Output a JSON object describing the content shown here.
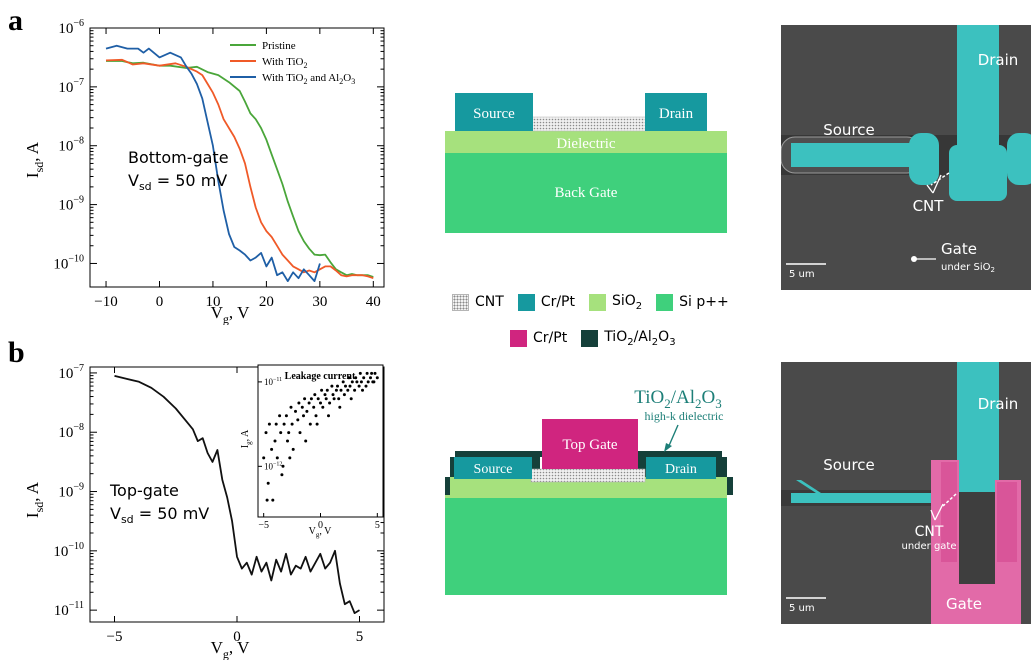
{
  "panel_a": {
    "letter": "a",
    "chart_data": {
      "type": "line",
      "xlabel_main": "V",
      "xlabel_sub": "g",
      "xlabel_tail": ", V",
      "ylabel_main": "I",
      "ylabel_sub": "sd",
      "ylabel_tail": ", A",
      "y_scale": "log",
      "xlim": [
        -13,
        42
      ],
      "ylim_exp": [
        -10.4,
        -6
      ],
      "x_ticks": [
        -10,
        0,
        10,
        20,
        30,
        40
      ],
      "x_tick_labels": [
        "−10",
        "0",
        "10",
        "20",
        "30",
        "40"
      ],
      "y_ticks": [
        -10,
        -9,
        -8,
        -7,
        -6
      ],
      "y_tick_base": "10",
      "y_tick_exps": [
        "−10",
        "−9",
        "−8",
        "−7",
        "−6"
      ],
      "annotation_line1": "Bottom-gate",
      "annotation_line2_main": "V",
      "annotation_line2_sub": "sd",
      "annotation_line2_tail": " = 50 mV",
      "legend_position": "top-right",
      "series": [
        {
          "name": "Pristine",
          "color": "#4aa63a",
          "x": [
            -10,
            -7,
            -5,
            -3,
            0,
            2,
            5,
            7,
            9,
            11,
            13,
            15,
            16,
            17,
            18,
            19,
            20,
            21,
            22,
            23,
            24,
            25,
            26,
            27,
            28,
            29,
            30,
            31,
            32,
            33,
            34,
            35,
            36,
            37,
            38,
            39,
            40
          ],
          "logy": [
            -6.56,
            -6.56,
            -6.6,
            -6.59,
            -6.64,
            -6.64,
            -6.68,
            -6.66,
            -6.75,
            -6.8,
            -6.92,
            -7.07,
            -7.25,
            -7.45,
            -7.55,
            -7.7,
            -7.9,
            -8.15,
            -8.4,
            -8.65,
            -8.95,
            -9.2,
            -9.45,
            -9.62,
            -9.75,
            -9.85,
            -9.86,
            -9.85,
            -9.98,
            -10.1,
            -10.15,
            -10.2,
            -10.18,
            -10.2,
            -10.2,
            -10.2,
            -10.23
          ]
        },
        {
          "name": "With TiO",
          "name_sub": "2",
          "color": "#f05a28",
          "x": [
            -10,
            -7,
            -5,
            -3,
            0,
            3,
            5,
            7,
            8,
            9,
            10,
            11,
            12,
            13,
            14,
            15,
            16,
            17,
            18,
            19,
            20,
            21,
            22,
            23,
            24,
            25,
            26,
            27,
            28,
            29,
            30,
            31,
            32,
            33,
            34,
            35,
            36,
            37,
            38,
            39,
            40
          ],
          "logy": [
            -6.55,
            -6.54,
            -6.62,
            -6.6,
            -6.64,
            -6.6,
            -6.66,
            -6.74,
            -6.8,
            -6.95,
            -7.1,
            -7.3,
            -7.55,
            -7.7,
            -7.85,
            -8.05,
            -8.3,
            -8.7,
            -9.05,
            -9.3,
            -9.45,
            -9.55,
            -9.7,
            -9.85,
            -9.95,
            -10.05,
            -10.1,
            -10.15,
            -10.12,
            -10.15,
            -10.1,
            -10.05,
            -10.05,
            -10.12,
            -10.2,
            -10.22,
            -10.2,
            -10.2,
            -10.2,
            -10.22,
            -10.25
          ]
        },
        {
          "name": "With TiO",
          "name_sub": "2",
          "name_tail": " and Al",
          "name_sub2": "2",
          "name_tail2": "O",
          "name_sub3": "3",
          "color": "#1f5fa6",
          "x": [
            -10,
            -8,
            -6,
            -4,
            -3,
            -2,
            0,
            2,
            4,
            5,
            6,
            7,
            8,
            9,
            10,
            11,
            12,
            13,
            14,
            15,
            16,
            17,
            18,
            19,
            20,
            21,
            22,
            23,
            24,
            25,
            26,
            27,
            28,
            29,
            30
          ],
          "logy": [
            -6.35,
            -6.3,
            -6.35,
            -6.35,
            -6.42,
            -6.35,
            -6.5,
            -6.42,
            -6.5,
            -6.65,
            -6.78,
            -6.95,
            -7.2,
            -7.6,
            -8.0,
            -8.6,
            -9.1,
            -9.5,
            -9.72,
            -9.78,
            -9.85,
            -9.95,
            -9.9,
            -9.82,
            -10.05,
            -9.9,
            -10.2,
            -10.15,
            -10.3,
            -10.15,
            -10.25,
            -10.1,
            -10.2,
            -10.3,
            -10.0
          ]
        }
      ]
    },
    "schematic": {
      "source": "Source",
      "drain": "Drain",
      "dielectric": "Dielectric",
      "back_gate": "Back Gate"
    },
    "sem": {
      "drain": "Drain",
      "source": "Source",
      "cnt": "CNT",
      "gate": "Gate",
      "gate_sub_main": "under SiO",
      "gate_sub_sub": "2",
      "scale": "5 um"
    }
  },
  "legend_materials": {
    "row1": [
      {
        "label": "CNT",
        "color": "pattern"
      },
      {
        "label": "Cr/Pt",
        "color": "#16999f"
      },
      {
        "label_main": "SiO",
        "label_sub": "2",
        "color": "#a6e17d"
      },
      {
        "label": "Si p++",
        "color": "#3fd07c"
      }
    ],
    "row2": [
      {
        "label": "Cr/Pt",
        "color": "#d0257f"
      },
      {
        "label_main": "TiO",
        "label_sub": "2",
        "label_tail": "/Al",
        "label_sub2": "2",
        "label_tail2": "O",
        "label_sub3": "3",
        "color": "#15403a"
      }
    ]
  },
  "panel_b": {
    "letter": "b",
    "chart_data": {
      "type": "line",
      "xlabel_main": "V",
      "xlabel_sub": "g",
      "xlabel_tail": ", V",
      "ylabel_main": "I",
      "ylabel_sub": "sd",
      "ylabel_tail": ", A",
      "y_scale": "log",
      "xlim": [
        -6,
        6
      ],
      "ylim_exp": [
        -11.2,
        -6.9
      ],
      "x_ticks": [
        -5,
        0,
        5
      ],
      "x_tick_labels": [
        "−5",
        "0",
        "5"
      ],
      "y_ticks": [
        -11,
        -10,
        -9,
        -8,
        -7
      ],
      "y_tick_base": "10",
      "y_tick_exps": [
        "−11",
        "−10",
        "−9",
        "−8",
        "−7"
      ],
      "annotation_line1": "Top-gate",
      "annotation_line2_main": "V",
      "annotation_line2_sub": "sd",
      "annotation_line2_tail": " = 50 mV",
      "series": [
        {
          "color": "#111111",
          "x": [
            -5,
            -4.5,
            -4,
            -3.5,
            -3,
            -2.5,
            -2,
            -1.8,
            -1.6,
            -1.4,
            -1.2,
            -1.0,
            -0.8,
            -0.6,
            -0.4,
            -0.2,
            0,
            0.2,
            0.4,
            0.6,
            0.8,
            1.0,
            1.2,
            1.4,
            1.6,
            1.8,
            2.0,
            2.2,
            2.4,
            2.6,
            2.8,
            3.0,
            3.2,
            3.4,
            3.6,
            3.8,
            4.0,
            4.2,
            4.4,
            4.6,
            4.8,
            5.0
          ],
          "logy": [
            -7.05,
            -7.1,
            -7.15,
            -7.25,
            -7.4,
            -7.6,
            -7.85,
            -7.95,
            -8.15,
            -8.1,
            -8.35,
            -8.5,
            -8.3,
            -8.8,
            -9.1,
            -9.5,
            -10.1,
            -10.3,
            -10.2,
            -10.4,
            -10.1,
            -10.35,
            -10.2,
            -10.5,
            -10.15,
            -10.35,
            -10.05,
            -10.4,
            -10.25,
            -10.3,
            -10.1,
            -10.35,
            -10.2,
            -10.05,
            -10.3,
            -10.2,
            -10.0,
            -10.55,
            -10.9,
            -10.85,
            -11.05,
            -11.0
          ]
        }
      ],
      "inset": {
        "title": "Leakage current",
        "xlabel_main": "V",
        "xlabel_sub": "g",
        "xlabel_tail": ", V",
        "ylabel_main": "I",
        "ylabel_sub": "g",
        "ylabel_tail": ", A",
        "type": "scatter",
        "xlim": [
          -5.5,
          5.5
        ],
        "ylim_exp": [
          -12.6,
          -10.8
        ],
        "x_ticks": [
          -5,
          0,
          5
        ],
        "x_tick_labels": [
          "−5",
          "0",
          "5"
        ],
        "y_ticks": [
          -11,
          -12
        ],
        "y_tick_exps": [
          "−11",
          "−12"
        ],
        "x": [
          -5,
          -4.8,
          -4.6,
          -4.5,
          -4.3,
          -4.2,
          -4.0,
          -3.9,
          -3.8,
          -3.6,
          -3.5,
          -3.4,
          -3.2,
          -3.0,
          -2.9,
          -2.8,
          -2.6,
          -2.5,
          -2.4,
          -2.2,
          -2.0,
          -1.9,
          -1.8,
          -1.6,
          -1.5,
          -1.4,
          -1.2,
          -1.0,
          -0.9,
          -0.8,
          -0.6,
          -0.5,
          -0.4,
          -0.2,
          0,
          0.1,
          0.2,
          0.4,
          0.5,
          0.6,
          0.8,
          1.0,
          1.1,
          1.2,
          1.4,
          1.5,
          1.6,
          1.8,
          2.0,
          2.1,
          2.2,
          2.4,
          2.5,
          2.6,
          2.8,
          3.0,
          3.1,
          3.2,
          3.4,
          3.5,
          3.6,
          3.8,
          4.0,
          4.1,
          4.2,
          4.4,
          4.5,
          4.6,
          4.8,
          5.0,
          -4.7,
          -3.3,
          -2.7,
          -1.3,
          -0.3,
          0.7,
          1.7,
          2.7,
          3.7,
          4.7
        ],
        "logy": [
          -11.9,
          -11.6,
          -12.2,
          -11.5,
          -11.8,
          -12.4,
          -11.7,
          -11.5,
          -11.9,
          -11.4,
          -11.6,
          -12.1,
          -11.5,
          -11.4,
          -11.7,
          -11.6,
          -11.3,
          -11.5,
          -11.8,
          -11.35,
          -11.45,
          -11.25,
          -11.6,
          -11.3,
          -11.4,
          -11.2,
          -11.35,
          -11.25,
          -11.5,
          -11.2,
          -11.3,
          -11.15,
          -11.4,
          -11.2,
          -11.25,
          -11.1,
          -11.3,
          -11.15,
          -11.2,
          -11.1,
          -11.25,
          -11.05,
          -11.15,
          -11.2,
          -11.1,
          -11.05,
          -11.2,
          -11.1,
          -11.0,
          -11.15,
          -11.05,
          -11.1,
          -10.95,
          -11.05,
          -11.0,
          -11.1,
          -10.95,
          -11.0,
          -11.05,
          -10.9,
          -11.0,
          -10.95,
          -11.05,
          -10.9,
          -11.0,
          -10.95,
          -10.9,
          -11.0,
          -10.9,
          -10.95,
          -12.4,
          -12.0,
          -11.9,
          -11.7,
          -11.5,
          -11.4,
          -11.3,
          -11.2,
          -11.1,
          -11.0
        ]
      }
    },
    "schematic": {
      "top_gate": "Top Gate",
      "source": "Source",
      "drain": "Drain",
      "dielectric_label_main": "TiO",
      "dielectric_label_sub": "2",
      "dielectric_label_tail": "/Al",
      "dielectric_label_sub2": "2",
      "dielectric_label_tail2": "O",
      "dielectric_label_sub3": "3",
      "dielectric_note": "high-k dielectric"
    },
    "sem": {
      "drain": "Drain",
      "source": "Source",
      "cnt": "CNT",
      "cnt_note": "under gate",
      "gate": "Gate",
      "scale": "5 um"
    }
  },
  "colors": {
    "electrode": "#16999f",
    "dielectric": "#a6e17d",
    "substrate": "#3fd07c",
    "topgate": "#d0257f",
    "highk": "#15403a",
    "sem_bg": "#4a4a4a",
    "sem_cyan": "#3cc1bf",
    "sem_pink": "#e26aa8"
  }
}
